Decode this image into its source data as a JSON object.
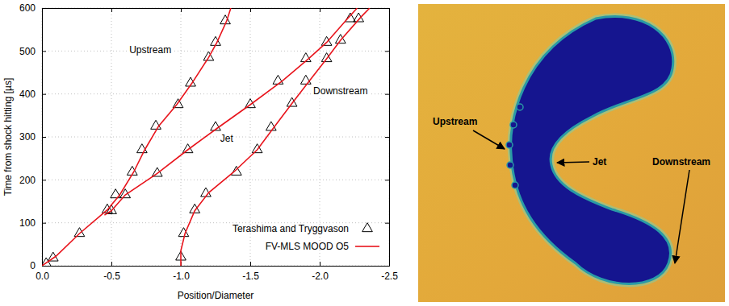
{
  "chart_data": {
    "type": "line",
    "x_label": "Position/Diameter",
    "y_label": "Time from shock hitting [µs]",
    "xlim": [
      0,
      -2.5
    ],
    "xticks": [
      {
        "value": 0,
        "label": "0.0"
      },
      -0.5,
      {
        "value": -1,
        "label": "-1.0"
      },
      -1.5,
      {
        "value": -2,
        "label": "-2.0"
      },
      -2.5
    ],
    "ylim": [
      0,
      600
    ],
    "yticks": [
      0,
      100,
      200,
      300,
      400,
      500,
      600
    ],
    "grid": true,
    "legend": "lower right",
    "series": [
      {
        "name": "Terashima and Tryggvason",
        "type": "scatter",
        "marker": "triangle",
        "color": "#000000",
        "x": [
          -0.03,
          -0.08,
          -0.27,
          -0.47,
          -0.53,
          -0.65,
          -0.72,
          -0.82,
          -0.98,
          -1.07,
          -1.2,
          -1.25,
          -1.32,
          -0.5,
          -0.6,
          -0.83,
          -1.05,
          -1.25,
          -1.5,
          -1.7,
          -1.9,
          -2.05,
          -2.22,
          -1.0,
          -1.02,
          -1.1,
          -1.18,
          -1.4,
          -1.55,
          -1.65,
          -1.8,
          -1.9,
          -2.05,
          -2.15,
          -2.28
        ],
        "values": [
          5,
          18,
          75,
          130,
          165,
          218,
          270,
          325,
          375,
          425,
          485,
          520,
          570,
          128,
          165,
          215,
          270,
          322,
          375,
          430,
          482,
          520,
          575,
          20,
          75,
          130,
          168,
          218,
          270,
          322,
          378,
          430,
          482,
          525,
          575
        ]
      },
      {
        "name": "FV-MLS MOOD O5",
        "type": "line",
        "color": "#e8141c",
        "x": [
          0,
          -0.1,
          -0.27,
          -0.47,
          -0.56,
          -0.66,
          -0.74,
          -0.84,
          -0.97,
          -1.08,
          -1.2,
          -1.26,
          -1.33,
          -1.36,
          null,
          -0.45,
          -0.5,
          -0.6,
          -0.83,
          -1.05,
          -1.27,
          -1.5,
          -1.73,
          -1.92,
          -2.05,
          -2.2,
          -2.27,
          null,
          -1.0,
          -1.0,
          -1.03,
          -1.1,
          -1.2,
          -1.38,
          -1.55,
          -1.67,
          -1.8,
          -1.93,
          -2.05,
          -2.15,
          -2.3,
          -2.36
        ],
        "values": [
          0,
          22,
          75,
          130,
          165,
          218,
          270,
          325,
          375,
          425,
          485,
          520,
          570,
          600,
          null,
          118,
          128,
          165,
          215,
          270,
          322,
          375,
          430,
          482,
          520,
          575,
          600,
          null,
          0,
          35,
          75,
          128,
          170,
          218,
          270,
          322,
          378,
          432,
          482,
          525,
          580,
          600
        ]
      }
    ],
    "annotations": [
      {
        "text": "Upstream",
        "x": -0.78,
        "y": 495
      },
      {
        "text": "Jet",
        "x": -1.33,
        "y": 288
      },
      {
        "text": "Downstream",
        "x": -2.15,
        "y": 400
      }
    ]
  },
  "image": {
    "labels": [
      "Upstream",
      "Jet",
      "Downstream"
    ]
  }
}
